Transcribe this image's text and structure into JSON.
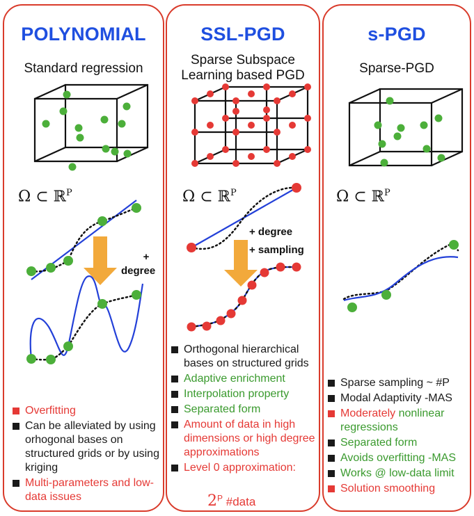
{
  "panels": [
    {
      "title": "POLYNOMIAL",
      "subtitle": "Standard regression",
      "omega": "Ω ⊂ ℝ",
      "omega_sup": "P",
      "annotation": [
        "+",
        "degree"
      ],
      "bullets": [
        {
          "text": "Overfitting",
          "color": "red"
        },
        {
          "text": "Can be alleviated by using orhogonal bases on structured grids or by using kriging",
          "color": "black"
        },
        {
          "text": "Multi-parameters and low-data issues",
          "color": "red"
        }
      ]
    },
    {
      "title": "SSL-PGD",
      "subtitle_line1": "Sparse Subspace",
      "subtitle_line2": "Learning based PGD",
      "omega": "Ω ⊂ ℝ",
      "omega_sup": "P",
      "annotation": [
        "+ degree",
        "+ sampling"
      ],
      "bullets": [
        {
          "text": "Orthogonal hierarchical bases on structured grids",
          "color": "black"
        },
        {
          "text": "Adaptive enrichment",
          "color": "green"
        },
        {
          "text": "Interpolation property",
          "color": "green"
        },
        {
          "text": "Separated form",
          "color": "green"
        },
        {
          "text": "Amount of data in high dimensions or high degree approximations",
          "color": "red"
        },
        {
          "text": "Level 0 approximation:",
          "color": "red"
        }
      ],
      "formula_base": "2",
      "formula_sup": "P",
      "formula_suffix": "#data"
    },
    {
      "title": "s-PGD",
      "subtitle": "Sparse-PGD",
      "omega": "Ω ⊂ ℝ",
      "omega_sup": "P",
      "bullets": [
        {
          "text": "Sparse sampling ~ #P",
          "color": "black"
        },
        {
          "text": "Modal Adaptivity -MAS",
          "color": "black"
        },
        {
          "text_red": "Moderately",
          "text_green": " nonlinear regressions",
          "color": "mixed"
        },
        {
          "text": "Separated form",
          "color": "green"
        },
        {
          "text": "Avoids overfitting -MAS",
          "color": "green"
        },
        {
          "text": "Works @ low-data limit",
          "color": "green"
        },
        {
          "text": "Solution smoothing",
          "color": "red"
        }
      ]
    }
  ],
  "colors": {
    "border": "#d93b2b",
    "title": "#1f4fe0",
    "green_dot": "#4caf3a",
    "red_dot": "#e53935",
    "arrow": "#f2a93b",
    "curve": "#2340d8"
  }
}
